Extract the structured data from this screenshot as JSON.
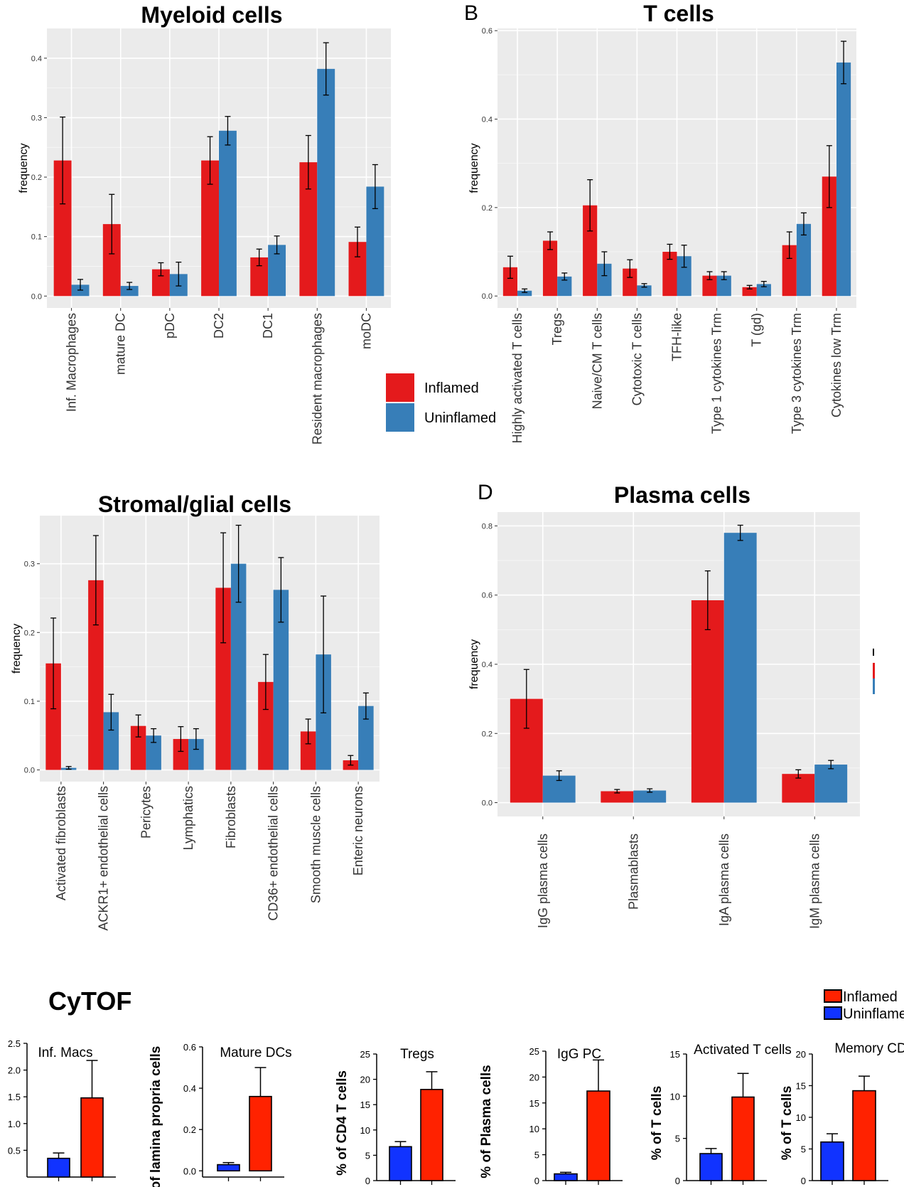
{
  "colors": {
    "inflamed": "#e41a1c",
    "uninflamed": "#377eb8",
    "cytof_inflamed": "#ff2200",
    "cytof_uninflamed": "#1133ff",
    "panel_bg": "#ebebeb",
    "grid": "#ffffff"
  },
  "legend_top": {
    "inflamed": "Inflamed",
    "uninflamed": "Uninflamed"
  },
  "cytof_section": {
    "title": "CyTOF",
    "legend": {
      "inflamed": "Inflamed",
      "uninflamed": "Uninflame"
    }
  },
  "chart_data": [
    {
      "id": "myeloid",
      "type": "bar",
      "title": "Myeloid cells",
      "panel_letter": "",
      "ylabel": "frequency",
      "ylim": [
        -0.02,
        0.45
      ],
      "yticks": [
        0.0,
        0.1,
        0.2,
        0.3,
        0.4
      ],
      "categories": [
        "Inf. Macrophages",
        "mature DC",
        "pDC",
        "DC2",
        "DC1",
        "Resident macrophages",
        "moDC"
      ],
      "series": [
        {
          "name": "Inflamed",
          "values": [
            0.228,
            0.121,
            0.045,
            0.228,
            0.065,
            0.225,
            0.091
          ],
          "err": [
            0.073,
            0.05,
            0.011,
            0.04,
            0.014,
            0.045,
            0.025
          ]
        },
        {
          "name": "Uninflamed",
          "values": [
            0.019,
            0.017,
            0.037,
            0.278,
            0.086,
            0.382,
            0.184
          ],
          "err": [
            0.009,
            0.006,
            0.02,
            0.024,
            0.015,
            0.044,
            0.037
          ]
        }
      ]
    },
    {
      "id": "tcells",
      "type": "bar",
      "title": "T cells",
      "panel_letter": "B",
      "ylabel": "frequency",
      "ylim": [
        -0.027,
        0.605
      ],
      "yticks": [
        0.0,
        0.2,
        0.4,
        0.6
      ],
      "categories": [
        "Highly activated T cells",
        "Tregs",
        "Naive/CM T cells",
        "Cytotoxic T cells",
        "TFH-like",
        "Type 1 cytokines Trm",
        "T (gd)",
        "Type 3 cytokines Trm",
        "Cytokines low Trm"
      ],
      "series": [
        {
          "name": "Inflamed",
          "values": [
            0.065,
            0.125,
            0.205,
            0.062,
            0.1,
            0.046,
            0.02,
            0.115,
            0.27
          ],
          "err": [
            0.025,
            0.02,
            0.058,
            0.02,
            0.017,
            0.009,
            0.004,
            0.03,
            0.07
          ]
        },
        {
          "name": "Uninflamed",
          "values": [
            0.012,
            0.044,
            0.073,
            0.024,
            0.09,
            0.046,
            0.027,
            0.163,
            0.528
          ],
          "err": [
            0.004,
            0.008,
            0.027,
            0.004,
            0.025,
            0.009,
            0.006,
            0.025,
            0.048
          ]
        }
      ]
    },
    {
      "id": "stromal",
      "type": "bar",
      "title": "Stromal/glial cells",
      "panel_letter": "",
      "ylabel": "frequency",
      "ylim": [
        -0.017,
        0.37
      ],
      "yticks": [
        0.0,
        0.1,
        0.2,
        0.3
      ],
      "categories": [
        "Activated fibroblasts",
        "ACKR1+ endothelial cells",
        "Pericytes",
        "Lymphatics",
        "Fibroblasts",
        "CD36+ endothelial cells",
        "Smooth muscle cells",
        "Enteric neurons"
      ],
      "series": [
        {
          "name": "Inflamed",
          "values": [
            0.155,
            0.276,
            0.064,
            0.045,
            0.265,
            0.128,
            0.056,
            0.014
          ],
          "err": [
            0.066,
            0.065,
            0.016,
            0.018,
            0.08,
            0.04,
            0.018,
            0.007
          ]
        },
        {
          "name": "Uninflamed",
          "values": [
            0.003,
            0.084,
            0.05,
            0.045,
            0.3,
            0.262,
            0.168,
            0.093
          ],
          "err": [
            0.002,
            0.026,
            0.01,
            0.015,
            0.056,
            0.047,
            0.085,
            0.019
          ]
        }
      ]
    },
    {
      "id": "plasma",
      "type": "bar",
      "title": "Plasma cells",
      "panel_letter": "D",
      "ylabel": "frequency",
      "ylim": [
        -0.04,
        0.84
      ],
      "yticks": [
        0.0,
        0.2,
        0.4,
        0.6,
        0.8
      ],
      "ytick_labels": [
        "0.0",
        "0.2",
        "0.4",
        "0.6",
        "0.8"
      ],
      "categories": [
        "IgG plasma cells",
        "Plasmablasts",
        "IgA plasma cells",
        "IgM plasma cells"
      ],
      "series": [
        {
          "name": "Inflamed",
          "values": [
            0.3,
            0.033,
            0.585,
            0.083
          ],
          "err": [
            0.085,
            0.005,
            0.085,
            0.012
          ]
        },
        {
          "name": "Uninflamed",
          "values": [
            0.078,
            0.035,
            0.78,
            0.11
          ],
          "err": [
            0.014,
            0.005,
            0.022,
            0.012
          ]
        }
      ]
    },
    {
      "id": "cy_infmacs",
      "type": "bar",
      "title": "Inf. Macs",
      "ylabel": "",
      "ylim": [
        0,
        2.5
      ],
      "yticks": [
        0.5,
        1.0,
        1.5,
        2.0,
        2.5
      ],
      "ytick_labels": [
        "0.5",
        "1.0",
        "1.5",
        "2.0",
        "2.5"
      ],
      "categories": [
        "Uninflamed",
        "Inflamed"
      ],
      "values": [
        0.35,
        1.48
      ],
      "err": [
        0.1,
        0.7
      ]
    },
    {
      "id": "cy_maturedcs",
      "type": "bar",
      "title": "Mature DCs",
      "ylabel": "of lamina propria cells",
      "ylim": [
        -0.03,
        0.6
      ],
      "yticks": [
        0.0,
        0.2,
        0.4,
        0.6
      ],
      "ytick_labels": [
        "0.0",
        "0.2",
        "0.4",
        "0.6"
      ],
      "categories": [
        "Uninflamed",
        "Inflamed"
      ],
      "values": [
        0.03,
        0.36
      ],
      "err": [
        0.01,
        0.14
      ]
    },
    {
      "id": "cy_tregs",
      "type": "bar",
      "title": "Tregs",
      "ylabel": "% of CD4 T cells",
      "ylim": [
        0,
        25
      ],
      "yticks": [
        0,
        5,
        10,
        15,
        20,
        25
      ],
      "ytick_labels": [
        "0",
        "5",
        "10",
        "15",
        "20",
        "25"
      ],
      "categories": [
        "Uninflamed",
        "Inflamed"
      ],
      "values": [
        6.7,
        18
      ],
      "err": [
        1.0,
        3.5
      ]
    },
    {
      "id": "cy_iggpc",
      "type": "bar",
      "title": "IgG PC",
      "ylabel": "% of Plasma cells",
      "ylim": [
        0,
        25
      ],
      "yticks": [
        0,
        5,
        10,
        15,
        20,
        25
      ],
      "ytick_labels": [
        "0",
        "5",
        "10",
        "15",
        "20",
        "25"
      ],
      "categories": [
        "Uninflamed",
        "Inflamed"
      ],
      "values": [
        1.3,
        17.3
      ],
      "err": [
        0.3,
        6.0
      ]
    },
    {
      "id": "cy_activated",
      "type": "bar",
      "title": "Activated T cells",
      "ylabel": "% of T cells",
      "ylim": [
        0,
        15
      ],
      "yticks": [
        0,
        5,
        10,
        15
      ],
      "ytick_labels": [
        "0",
        "5",
        "10",
        "15"
      ],
      "categories": [
        "Uninflamed",
        "Inflamed"
      ],
      "values": [
        3.2,
        9.9
      ],
      "err": [
        0.6,
        2.8
      ]
    },
    {
      "id": "cy_memory",
      "type": "bar",
      "title": "Memory CD",
      "ylabel": "% of T cells",
      "ylim": [
        0,
        20
      ],
      "yticks": [
        0,
        5,
        10,
        15,
        20
      ],
      "ytick_labels": [
        "0",
        "5",
        "10",
        "15",
        "20"
      ],
      "categories": [
        "Uninflamed",
        "Inflamed"
      ],
      "values": [
        6.1,
        14.2
      ],
      "err": [
        1.3,
        2.3
      ]
    }
  ]
}
